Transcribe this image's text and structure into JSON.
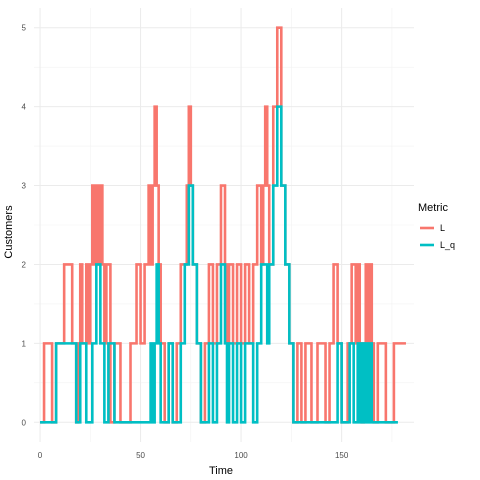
{
  "chart_data": {
    "type": "line",
    "step": true,
    "xlabel": "Time",
    "ylabel": "Customers",
    "xlim": [
      -3,
      186
    ],
    "ylim": [
      -0.25,
      5.25
    ],
    "x_ticks": [
      0,
      50,
      100,
      150
    ],
    "y_ticks": [
      0,
      1,
      2,
      3,
      4,
      5
    ],
    "grid": true,
    "legend": {
      "title": "Metric",
      "position": "right"
    },
    "series": [
      {
        "name": "L",
        "color": "#F8766D",
        "x": [
          0,
          2,
          6,
          8,
          12,
          16,
          18,
          19,
          20,
          21,
          23,
          24,
          25,
          26,
          27,
          28,
          29,
          30,
          31,
          32,
          33,
          35,
          37,
          40,
          45,
          48,
          50,
          52,
          54,
          55,
          56,
          57,
          58,
          59,
          60,
          62,
          64,
          66,
          68,
          70,
          73,
          74,
          75,
          76,
          78,
          80,
          82,
          84,
          86,
          88,
          90,
          92,
          93,
          94,
          96,
          98,
          100,
          102,
          104,
          106,
          108,
          110,
          111,
          112,
          113,
          114,
          116,
          118,
          120,
          122,
          124,
          126,
          128,
          130,
          132,
          135,
          138,
          142,
          144,
          146,
          148,
          150,
          153,
          155,
          157,
          158,
          159,
          160,
          161,
          162,
          163,
          164,
          165,
          166,
          168,
          172,
          176,
          182
        ],
        "y": [
          0,
          1,
          0,
          1,
          2,
          1,
          0,
          1,
          2,
          1,
          2,
          1,
          2,
          3,
          2,
          3,
          2,
          3,
          2,
          1,
          2,
          0,
          1,
          0,
          1,
          2,
          1,
          2,
          3,
          2,
          3,
          4,
          3,
          2,
          1,
          0,
          1,
          0,
          1,
          2,
          3,
          4,
          3,
          2,
          1,
          0,
          1,
          2,
          1,
          2,
          3,
          2,
          1,
          2,
          1,
          2,
          1,
          2,
          1,
          2,
          3,
          2,
          3,
          4,
          3,
          2,
          4,
          5,
          3,
          2,
          1,
          0,
          1,
          0,
          1,
          0,
          1,
          0,
          1,
          2,
          1,
          0,
          1,
          2,
          1,
          2,
          1,
          0,
          1,
          2,
          1,
          2,
          1,
          0,
          1,
          0,
          1,
          1
        ]
      },
      {
        "name": "L_q",
        "color": "#00BFC4",
        "x": [
          0,
          4,
          8,
          16,
          18,
          20,
          23,
          26,
          28,
          30,
          32,
          34,
          37,
          40,
          45,
          50,
          55,
          56,
          57,
          58,
          59,
          60,
          62,
          64,
          66,
          68,
          70,
          72,
          74,
          76,
          78,
          80,
          82,
          84,
          86,
          88,
          90,
          92,
          93,
          94,
          96,
          98,
          100,
          102,
          106,
          108,
          110,
          113,
          114,
          116,
          118,
          120,
          122,
          124,
          126,
          128,
          130,
          135,
          140,
          145,
          148,
          150,
          154,
          156,
          158,
          159,
          160,
          161,
          162,
          163,
          164,
          165,
          166,
          168,
          172,
          178
        ],
        "y": [
          0,
          0,
          1,
          1,
          0,
          1,
          0,
          1,
          2,
          1,
          0,
          1,
          0,
          0,
          0,
          0,
          1,
          0,
          1,
          2,
          1,
          0,
          0,
          1,
          0,
          0,
          1,
          2,
          3,
          2,
          1,
          0,
          0,
          1,
          0,
          1,
          2,
          1,
          0,
          1,
          0,
          1,
          0,
          1,
          0,
          1,
          2,
          1,
          2,
          3,
          4,
          3,
          2,
          1,
          0,
          0,
          0,
          0,
          0,
          0,
          1,
          0,
          1,
          0,
          1,
          0,
          1,
          0,
          1,
          0,
          1,
          0,
          0,
          0,
          0,
          0
        ]
      }
    ]
  }
}
